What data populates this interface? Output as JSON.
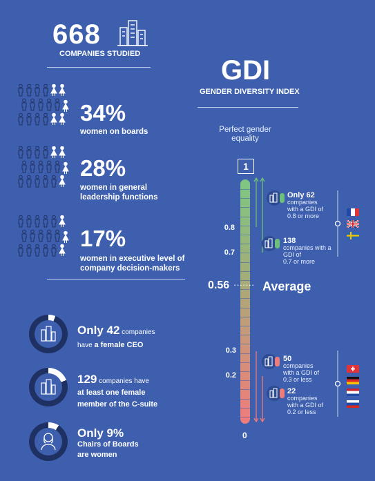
{
  "top": {
    "count": "668",
    "count_label": "COMPANIES STUDIED"
  },
  "gdi": {
    "title": "GDI",
    "subtitle": "GENDER DIVERSITY INDEX",
    "perfect": "Perfect gender",
    "perfect2": "equality",
    "top_value": "1"
  },
  "stats": [
    {
      "value": "34%",
      "label1": "women on boards",
      "label2": ""
    },
    {
      "value": "28%",
      "label1": "women in general",
      "label2": "leadership functions"
    },
    {
      "value": "17%",
      "label1": "women in executive level of",
      "label2": "company decision-makers"
    }
  ],
  "rings": [
    {
      "lead": "Only 42",
      "small": " companies",
      "line2a": "have ",
      "line2b": "a female CEO",
      "fill": 0.06
    },
    {
      "lead": "129",
      "small": " companies have",
      "line2a": "at least one female",
      "line2b": "member of the C-suite",
      "fill": 0.19
    },
    {
      "lead": "Only 9%",
      "small": "",
      "line2a": "Chairs of Boards",
      "line2b": "are women",
      "fill": 0.09
    }
  ],
  "scale": {
    "ticks": [
      "0.8",
      "0.7",
      "0.56",
      "0.3",
      "0.2",
      "0"
    ],
    "average": "Average",
    "dots": "·······"
  },
  "notes_high": [
    {
      "bold": "Only 62",
      "l1": "companies",
      "l2": "with a GDI of",
      "l3": "0.8 or more"
    },
    {
      "bold": "138",
      "l1": "companies with a GDI of",
      "l2": "0.7 or more",
      "l3": ""
    }
  ],
  "notes_low": [
    {
      "bold": "50",
      "l1": "companies",
      "l2": "with a GDI of",
      "l3": "0.3 or less"
    },
    {
      "bold": "22",
      "l1": "companies",
      "l2": "with a GDI of",
      "l3": "0.2 or less"
    }
  ],
  "colors": {
    "bg": "#3d5fae",
    "dark": "#1f3162",
    "green": "#6cc07a",
    "red": "#f07b7b"
  }
}
